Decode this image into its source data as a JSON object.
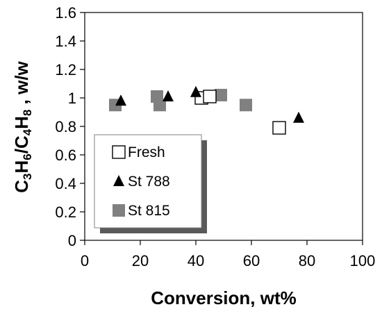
{
  "chart_data": {
    "type": "scatter",
    "xlabel": "Conversion, wt%",
    "ylabel": {
      "parts": [
        {
          "text": "C",
          "sub": false
        },
        {
          "text": "3",
          "sub": true
        },
        {
          "text": "H",
          "sub": false
        },
        {
          "text": "6",
          "sub": true
        },
        {
          "text": "/C",
          "sub": false
        },
        {
          "text": "4",
          "sub": true
        },
        {
          "text": "H",
          "sub": false
        },
        {
          "text": "8",
          "sub": true
        },
        {
          "text": " , w/w",
          "sub": false
        }
      ]
    },
    "xlim": [
      0,
      100
    ],
    "ylim": [
      0,
      1.6
    ],
    "x_ticks": [
      0,
      20,
      40,
      60,
      80,
      100
    ],
    "x_tick_labels": [
      "0",
      "20",
      "40",
      "60",
      "80",
      "100"
    ],
    "y_ticks": [
      0,
      0.2,
      0.4,
      0.6,
      0.8,
      1.0,
      1.2,
      1.4,
      1.6
    ],
    "y_tick_labels": [
      "0",
      "0.2",
      "0.4",
      "0.6",
      "0.8",
      "1",
      "1.2",
      "1.4",
      "1.6"
    ],
    "grid": false,
    "legend_position": "lower-left",
    "series": [
      {
        "name": "Fresh",
        "marker": "open-square",
        "color": "#000000",
        "points": [
          {
            "x": 42,
            "y": 1.0
          },
          {
            "x": 45,
            "y": 1.01
          },
          {
            "x": 70,
            "y": 0.79
          }
        ]
      },
      {
        "name": "St 788",
        "marker": "filled-triangle",
        "color": "#000000",
        "points": [
          {
            "x": 13,
            "y": 0.98
          },
          {
            "x": 30,
            "y": 1.01
          },
          {
            "x": 40,
            "y": 1.04
          },
          {
            "x": 77,
            "y": 0.86
          }
        ]
      },
      {
        "name": "St 815",
        "marker": "filled-square",
        "color": "#808080",
        "points": [
          {
            "x": 11,
            "y": 0.95
          },
          {
            "x": 26,
            "y": 1.01
          },
          {
            "x": 27,
            "y": 0.95
          },
          {
            "x": 49,
            "y": 1.02
          },
          {
            "x": 58,
            "y": 0.95
          }
        ]
      }
    ]
  }
}
